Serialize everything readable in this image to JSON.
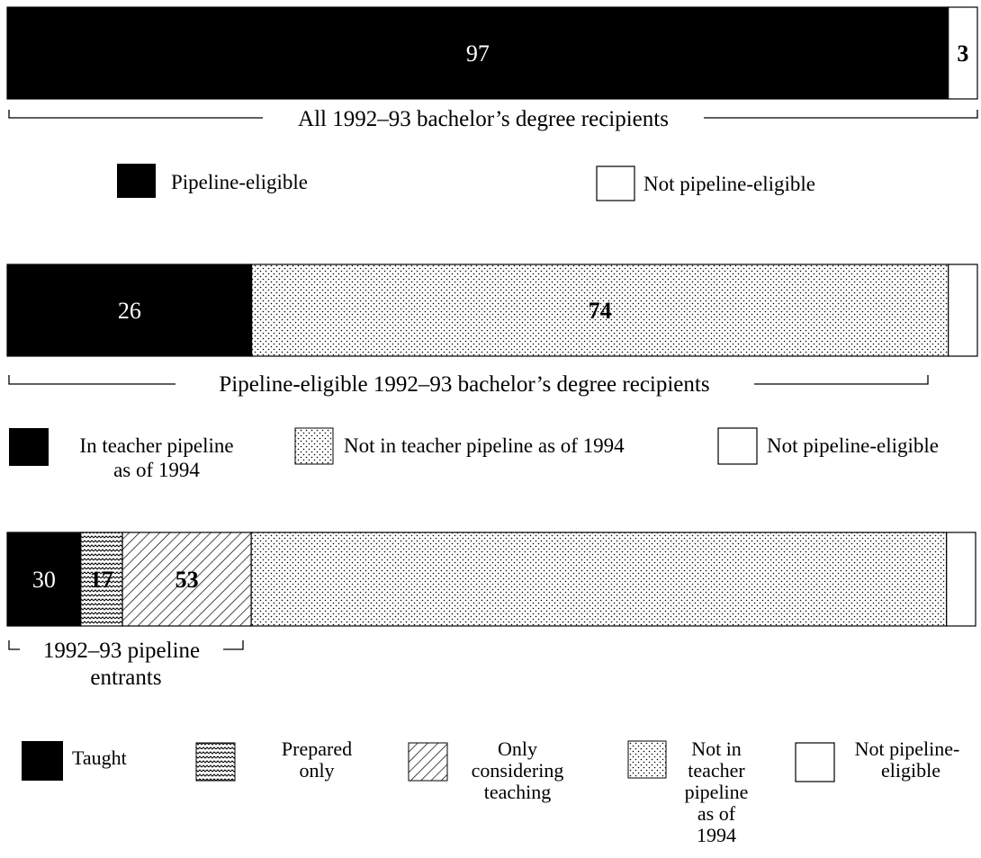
{
  "chart_data": [
    {
      "type": "bar",
      "orientation": "horizontal",
      "stacked": true,
      "bracket_label": "All 1992–93 bachelor’s degree recipients",
      "series": [
        {
          "name": "Pipeline-eligible",
          "value": 97,
          "label": "97",
          "fill": "solid"
        },
        {
          "name": "Not pipeline-eligible",
          "value": 3,
          "label": "3",
          "fill": "white"
        }
      ],
      "legend": [
        "Pipeline-eligible",
        "Not pipeline-eligible"
      ]
    },
    {
      "type": "bar",
      "orientation": "horizontal",
      "stacked": true,
      "bracket_label": "Pipeline-eligible 1992–93 bachelor’s degree recipients",
      "series": [
        {
          "name": "In teacher pipeline as of 1994",
          "value": 25.2,
          "label": "26",
          "fill": "solid"
        },
        {
          "name": "Not in teacher pipeline as of 1994",
          "value": 71.8,
          "label": "74",
          "fill": "dots"
        },
        {
          "name": "Not pipeline-eligible",
          "value": 3,
          "label": "",
          "fill": "white"
        }
      ],
      "legend": [
        "In teacher pipeline as of 1994",
        "Not in teacher pipeline as of 1994",
        "Not pipeline-eligible"
      ]
    },
    {
      "type": "bar",
      "orientation": "horizontal",
      "stacked": true,
      "bracket_label": "1992–93 pipeline entrants",
      "series": [
        {
          "name": "Taught",
          "value": 7.6,
          "label": "30",
          "fill": "solid"
        },
        {
          "name": "Prepared only",
          "value": 4.3,
          "label": "17",
          "fill": "waves"
        },
        {
          "name": "Only considering teaching",
          "value": 13.3,
          "label": "53",
          "fill": "hatch"
        },
        {
          "name": "Not in teacher pipeline as of 1994",
          "value": 71.8,
          "label": "",
          "fill": "dots"
        },
        {
          "name": "Not pipeline-eligible",
          "value": 3,
          "label": "",
          "fill": "white"
        }
      ],
      "legend": [
        "Taught",
        "Prepared only",
        "Only considering teaching",
        "Not in teacher pipeline as of 1994",
        "Not pipeline-eligible"
      ]
    }
  ],
  "legends": {
    "one": {
      "pipeline_eligible": "Pipeline-eligible",
      "not_eligible": "Not pipeline-eligible"
    },
    "two": {
      "in_pipeline_l1": "In teacher pipeline",
      "in_pipeline_l2": "as of 1994",
      "not_in_pipeline": "Not in teacher pipeline as of 1994",
      "not_eligible": "Not pipeline-eligible"
    },
    "three": {
      "taught": "Taught",
      "prepared_l1": "Prepared",
      "prepared_l2": "only",
      "considering_l1": "Only",
      "considering_l2": "considering",
      "considering_l3": "teaching",
      "notin_l1": "Not in",
      "notin_l2": "teacher",
      "notin_l3": "pipeline",
      "notin_l4": "as of",
      "notin_l5": "1994",
      "noteligible_l1": "Not pipeline-",
      "noteligible_l2": "eligible"
    }
  },
  "brackets": {
    "one": "All 1992–93 bachelor’s degree recipients",
    "two": "Pipeline-eligible 1992–93 bachelor’s degree recipients",
    "three_l1": "1992–93 pipeline",
    "three_l2": "entrants"
  }
}
